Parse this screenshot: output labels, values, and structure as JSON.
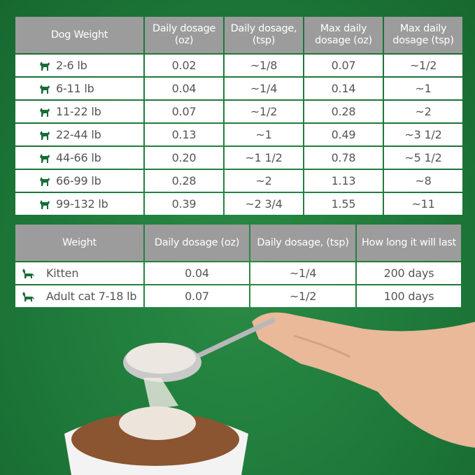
{
  "dog_table": {
    "headers": [
      "Dog Weight",
      "Daily dosage (oz)",
      "Daily dosage, (tsp)",
      "Max daily dosage (oz)",
      "Max daily dosage (tsp)"
    ],
    "rows": [
      {
        "icon": "small-dog-icon",
        "weight": "2-6 lb",
        "oz": "0.02",
        "tsp": "~1/8",
        "max_oz": "0.07",
        "max_tsp": "~1/2"
      },
      {
        "icon": "fluffy-dog-icon",
        "weight": "6-11 lb",
        "oz": "0.04",
        "tsp": "~1/4",
        "max_oz": "0.14",
        "max_tsp": "~1"
      },
      {
        "icon": "terrier-icon",
        "weight": "11-22 lb",
        "oz": "0.07",
        "tsp": "~1/2",
        "max_oz": "0.28",
        "max_tsp": "~2"
      },
      {
        "icon": "spaniel-icon",
        "weight": "22-44 lb",
        "oz": "0.13",
        "tsp": "~1",
        "max_oz": "0.49",
        "max_tsp": "~3 1/2"
      },
      {
        "icon": "collie-icon",
        "weight": "44-66 lb",
        "oz": "0.20",
        "tsp": "~1 1/2",
        "max_oz": "0.78",
        "max_tsp": "~5 1/2"
      },
      {
        "icon": "large-dog-icon",
        "weight": "66-99 lb",
        "oz": "0.28",
        "tsp": "~2",
        "max_oz": "1.13",
        "max_tsp": "~8"
      },
      {
        "icon": "husky-icon",
        "weight": "99-132 lb",
        "oz": "0.39",
        "tsp": "~2 3/4",
        "max_oz": "1.55",
        "max_tsp": "~11"
      }
    ]
  },
  "cat_table": {
    "headers": [
      "Weight",
      "Daily dosage (oz)",
      "Daily dosage, (tsp)",
      "How long it will last"
    ],
    "rows": [
      {
        "icon": "kitten-icon",
        "weight": "Kitten",
        "oz": "0.04",
        "tsp": "~1/4",
        "duration": "200 days"
      },
      {
        "icon": "cat-icon",
        "weight": "Adult cat 7-18 lb",
        "oz": "0.07",
        "tsp": "~1/2",
        "duration": "100 days"
      }
    ]
  },
  "colors": {
    "background": "#1e7a3a",
    "header": "#9c9c9c",
    "icon": "#1a6b3a"
  }
}
